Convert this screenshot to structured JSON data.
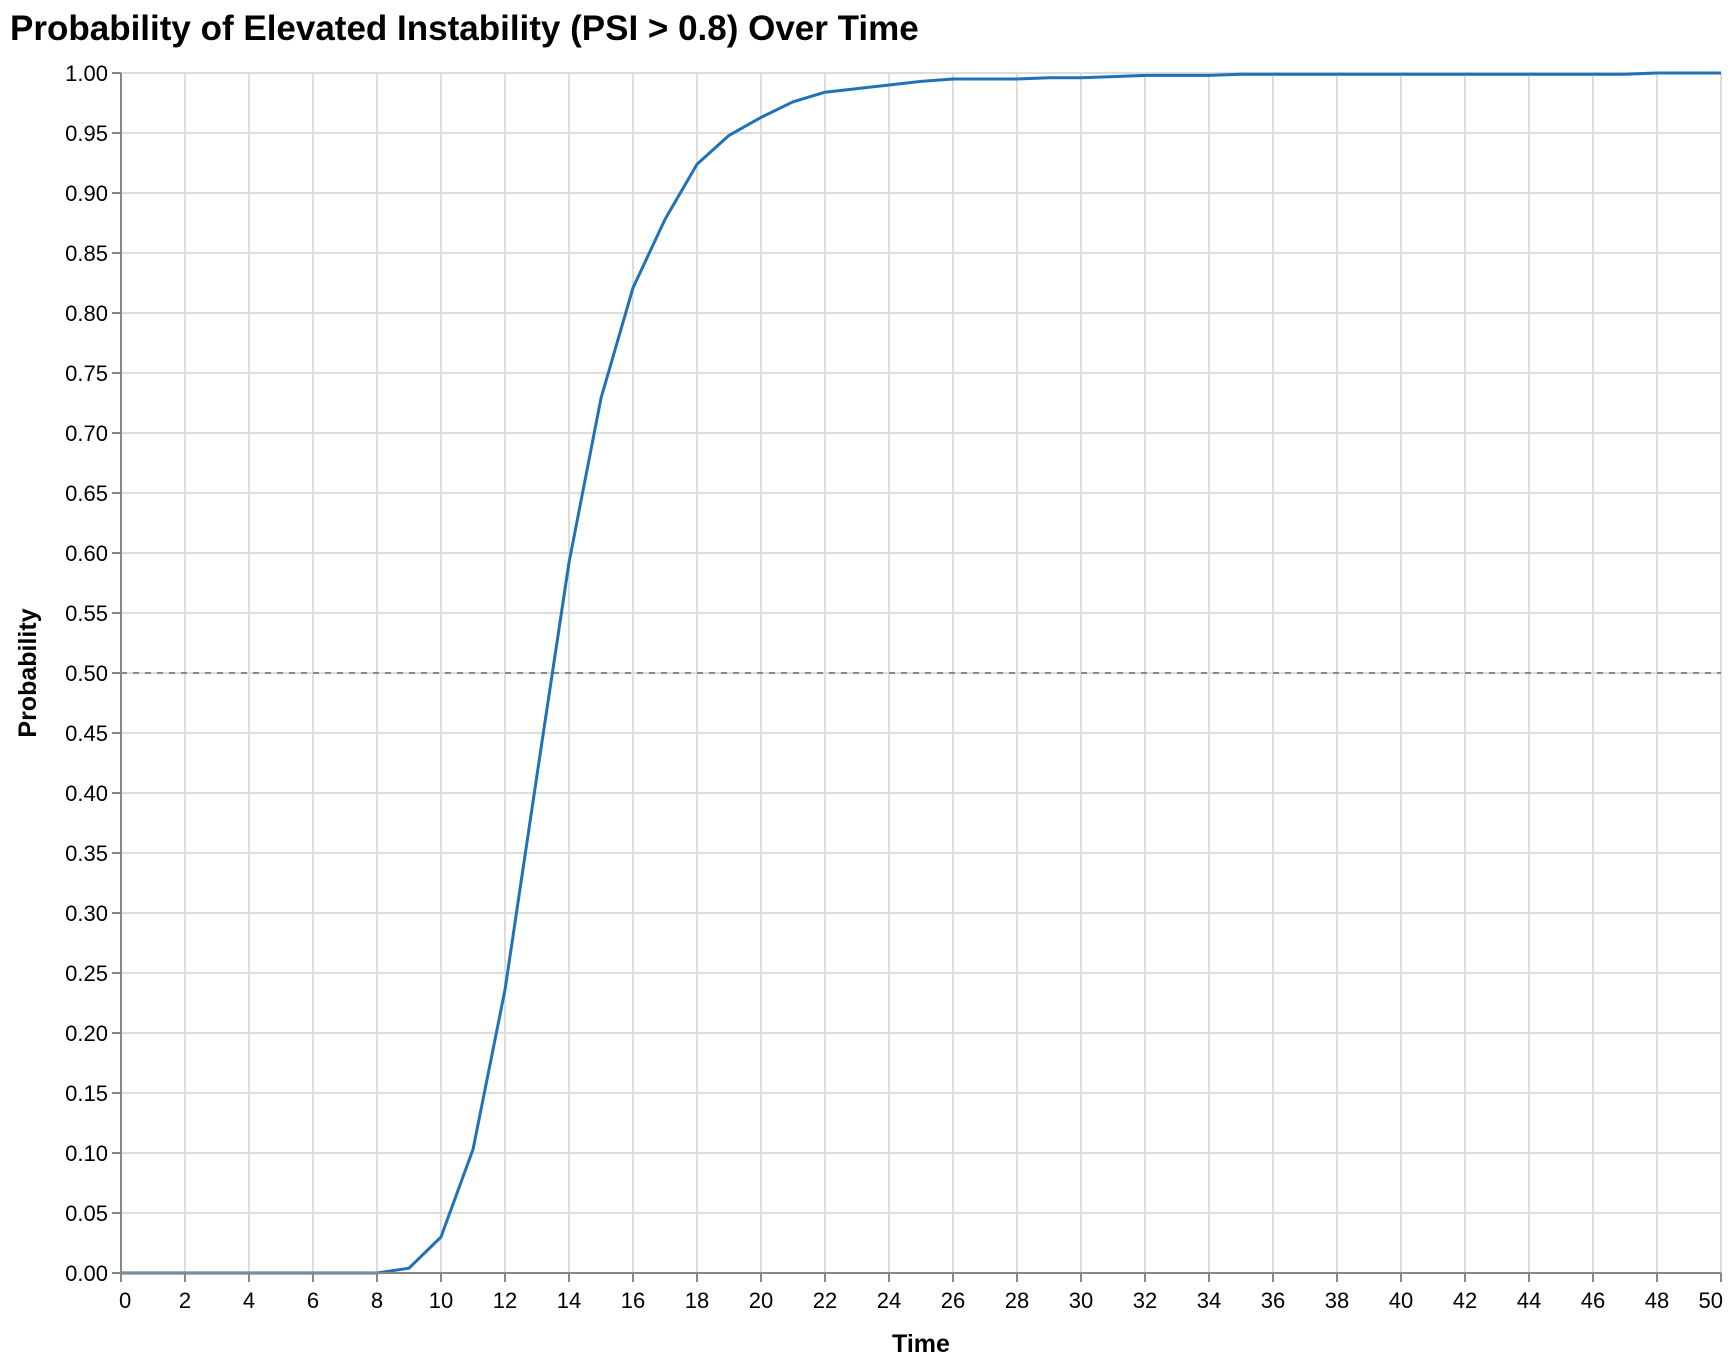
{
  "chart_data": {
    "type": "line",
    "title": "Probability of Elevated Instability (PSI > 0.8) Over Time",
    "xlabel": "Time",
    "ylabel": "Probability",
    "xlim": [
      0,
      50
    ],
    "ylim": [
      0,
      1
    ],
    "grid": true,
    "legend": null,
    "x_ticks": [
      0,
      2,
      4,
      6,
      8,
      10,
      12,
      14,
      16,
      18,
      20,
      22,
      24,
      26,
      28,
      30,
      32,
      34,
      36,
      38,
      40,
      42,
      44,
      46,
      48,
      50
    ],
    "y_ticks": [
      "0.00",
      "0.05",
      "0.10",
      "0.15",
      "0.20",
      "0.25",
      "0.30",
      "0.35",
      "0.40",
      "0.45",
      "0.50",
      "0.55",
      "0.60",
      "0.65",
      "0.70",
      "0.75",
      "0.80",
      "0.85",
      "0.90",
      "0.95",
      "1.00"
    ],
    "series": [
      {
        "name": "Probability",
        "color": "#2171b5",
        "x": [
          0,
          1,
          2,
          3,
          4,
          5,
          6,
          7,
          8,
          9,
          10,
          11,
          12,
          13,
          14,
          15,
          16,
          17,
          18,
          19,
          20,
          21,
          22,
          23,
          24,
          25,
          26,
          27,
          28,
          29,
          30,
          31,
          32,
          33,
          34,
          35,
          36,
          37,
          38,
          39,
          40,
          41,
          42,
          43,
          44,
          45,
          46,
          47,
          48,
          49,
          50
        ],
        "values": [
          0,
          0,
          0,
          0,
          0,
          0,
          0,
          0,
          0,
          0.004,
          0.03,
          0.103,
          0.236,
          0.415,
          0.592,
          0.729,
          0.821,
          0.878,
          0.924,
          0.948,
          0.963,
          0.976,
          0.984,
          0.987,
          0.99,
          0.993,
          0.995,
          0.995,
          0.995,
          0.996,
          0.996,
          0.997,
          0.998,
          0.998,
          0.998,
          0.999,
          0.999,
          0.999,
          0.999,
          0.999,
          0.999,
          0.999,
          0.999,
          0.999,
          0.999,
          0.999,
          0.999,
          0.999,
          1.0,
          1.0,
          1.0
        ]
      }
    ],
    "annotations": [
      {
        "type": "hline",
        "y": 0.5,
        "style": "dashed",
        "color": "#888888"
      }
    ]
  }
}
